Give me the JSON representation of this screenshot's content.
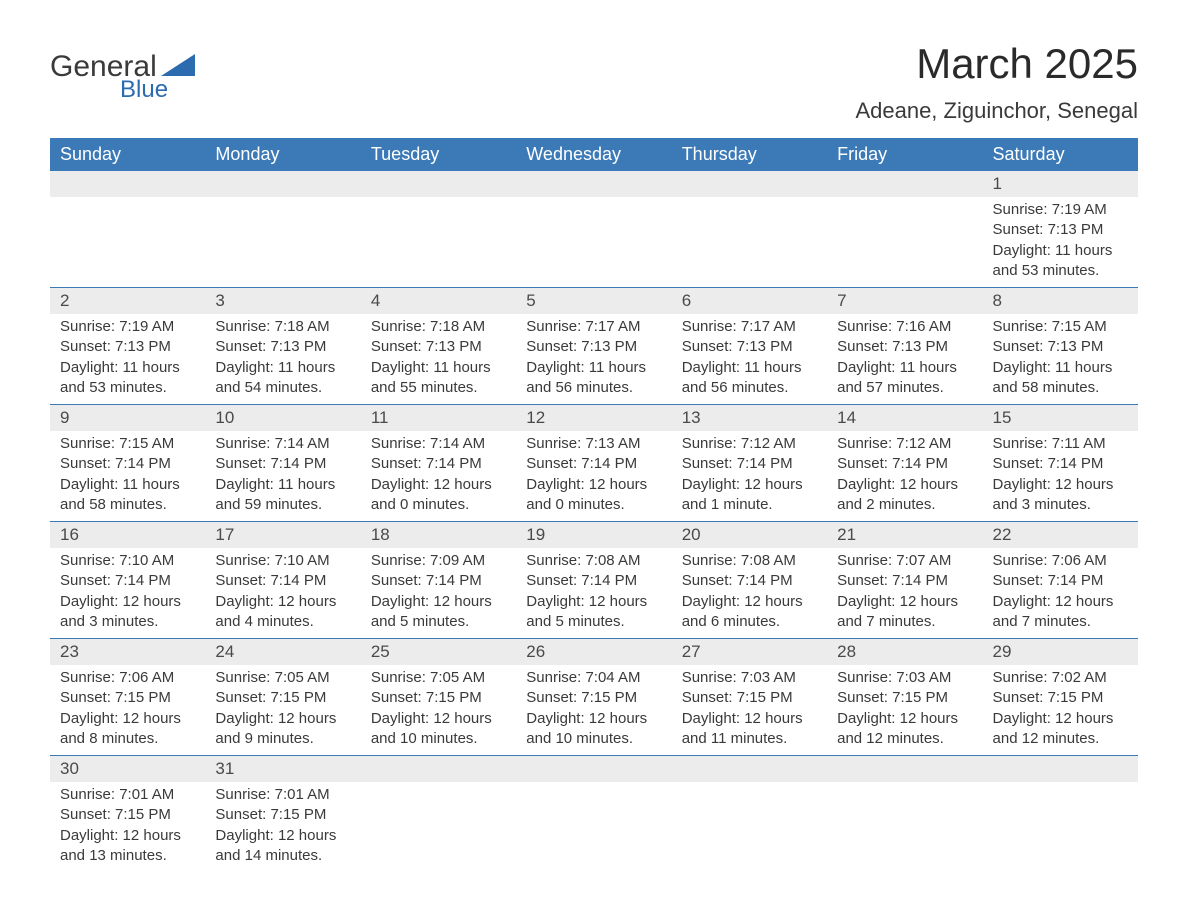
{
  "logo": {
    "text_general": "General",
    "text_blue": "Blue",
    "tri_color": "#2d6bb0"
  },
  "title": "March 2025",
  "location": "Adeane, Ziguinchor, Senegal",
  "styling": {
    "header_bg": "#3b79b7",
    "header_text": "#ffffff",
    "daynum_bg": "#ececec",
    "body_text": "#3a3a3a",
    "row_border": "#3b79b7",
    "month_title_fontsize": 42,
    "location_fontsize": 22,
    "header_fontsize": 18,
    "daynum_fontsize": 17,
    "detail_fontsize": 15
  },
  "weekdays": [
    "Sunday",
    "Monday",
    "Tuesday",
    "Wednesday",
    "Thursday",
    "Friday",
    "Saturday"
  ],
  "weeks": [
    [
      null,
      null,
      null,
      null,
      null,
      null,
      {
        "n": "1",
        "sr": "7:19 AM",
        "ss": "7:13 PM",
        "dl": "11 hours and 53 minutes."
      }
    ],
    [
      {
        "n": "2",
        "sr": "7:19 AM",
        "ss": "7:13 PM",
        "dl": "11 hours and 53 minutes."
      },
      {
        "n": "3",
        "sr": "7:18 AM",
        "ss": "7:13 PM",
        "dl": "11 hours and 54 minutes."
      },
      {
        "n": "4",
        "sr": "7:18 AM",
        "ss": "7:13 PM",
        "dl": "11 hours and 55 minutes."
      },
      {
        "n": "5",
        "sr": "7:17 AM",
        "ss": "7:13 PM",
        "dl": "11 hours and 56 minutes."
      },
      {
        "n": "6",
        "sr": "7:17 AM",
        "ss": "7:13 PM",
        "dl": "11 hours and 56 minutes."
      },
      {
        "n": "7",
        "sr": "7:16 AM",
        "ss": "7:13 PM",
        "dl": "11 hours and 57 minutes."
      },
      {
        "n": "8",
        "sr": "7:15 AM",
        "ss": "7:13 PM",
        "dl": "11 hours and 58 minutes."
      }
    ],
    [
      {
        "n": "9",
        "sr": "7:15 AM",
        "ss": "7:14 PM",
        "dl": "11 hours and 58 minutes."
      },
      {
        "n": "10",
        "sr": "7:14 AM",
        "ss": "7:14 PM",
        "dl": "11 hours and 59 minutes."
      },
      {
        "n": "11",
        "sr": "7:14 AM",
        "ss": "7:14 PM",
        "dl": "12 hours and 0 minutes."
      },
      {
        "n": "12",
        "sr": "7:13 AM",
        "ss": "7:14 PM",
        "dl": "12 hours and 0 minutes."
      },
      {
        "n": "13",
        "sr": "7:12 AM",
        "ss": "7:14 PM",
        "dl": "12 hours and 1 minute."
      },
      {
        "n": "14",
        "sr": "7:12 AM",
        "ss": "7:14 PM",
        "dl": "12 hours and 2 minutes."
      },
      {
        "n": "15",
        "sr": "7:11 AM",
        "ss": "7:14 PM",
        "dl": "12 hours and 3 minutes."
      }
    ],
    [
      {
        "n": "16",
        "sr": "7:10 AM",
        "ss": "7:14 PM",
        "dl": "12 hours and 3 minutes."
      },
      {
        "n": "17",
        "sr": "7:10 AM",
        "ss": "7:14 PM",
        "dl": "12 hours and 4 minutes."
      },
      {
        "n": "18",
        "sr": "7:09 AM",
        "ss": "7:14 PM",
        "dl": "12 hours and 5 minutes."
      },
      {
        "n": "19",
        "sr": "7:08 AM",
        "ss": "7:14 PM",
        "dl": "12 hours and 5 minutes."
      },
      {
        "n": "20",
        "sr": "7:08 AM",
        "ss": "7:14 PM",
        "dl": "12 hours and 6 minutes."
      },
      {
        "n": "21",
        "sr": "7:07 AM",
        "ss": "7:14 PM",
        "dl": "12 hours and 7 minutes."
      },
      {
        "n": "22",
        "sr": "7:06 AM",
        "ss": "7:14 PM",
        "dl": "12 hours and 7 minutes."
      }
    ],
    [
      {
        "n": "23",
        "sr": "7:06 AM",
        "ss": "7:15 PM",
        "dl": "12 hours and 8 minutes."
      },
      {
        "n": "24",
        "sr": "7:05 AM",
        "ss": "7:15 PM",
        "dl": "12 hours and 9 minutes."
      },
      {
        "n": "25",
        "sr": "7:05 AM",
        "ss": "7:15 PM",
        "dl": "12 hours and 10 minutes."
      },
      {
        "n": "26",
        "sr": "7:04 AM",
        "ss": "7:15 PM",
        "dl": "12 hours and 10 minutes."
      },
      {
        "n": "27",
        "sr": "7:03 AM",
        "ss": "7:15 PM",
        "dl": "12 hours and 11 minutes."
      },
      {
        "n": "28",
        "sr": "7:03 AM",
        "ss": "7:15 PM",
        "dl": "12 hours and 12 minutes."
      },
      {
        "n": "29",
        "sr": "7:02 AM",
        "ss": "7:15 PM",
        "dl": "12 hours and 12 minutes."
      }
    ],
    [
      {
        "n": "30",
        "sr": "7:01 AM",
        "ss": "7:15 PM",
        "dl": "12 hours and 13 minutes."
      },
      {
        "n": "31",
        "sr": "7:01 AM",
        "ss": "7:15 PM",
        "dl": "12 hours and 14 minutes."
      },
      null,
      null,
      null,
      null,
      null
    ]
  ],
  "labels": {
    "sunrise": "Sunrise: ",
    "sunset": "Sunset: ",
    "daylight": "Daylight: "
  }
}
